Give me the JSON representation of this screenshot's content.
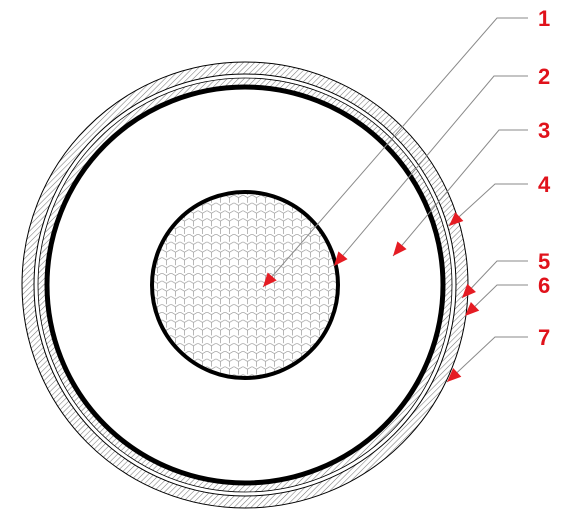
{
  "callouts": [
    {
      "number": "1"
    },
    {
      "number": "2"
    },
    {
      "number": "3"
    },
    {
      "number": "4"
    },
    {
      "number": "5"
    },
    {
      "number": "6"
    },
    {
      "number": "7"
    }
  ],
  "colors": {
    "label": "#e0121b",
    "arrow": "#e51c23",
    "leader": "#8a8a8a",
    "outline": "#000000",
    "hatch": "#7a7a7a",
    "conductor_mesh": "#9a9a9a",
    "background": "#ffffff"
  }
}
